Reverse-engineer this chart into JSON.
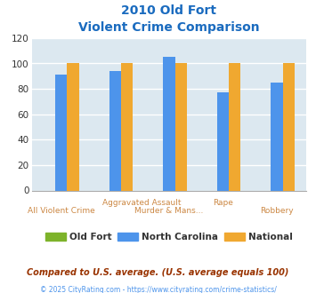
{
  "title_line1": "2010 Old Fort",
  "title_line2": "Violent Crime Comparison",
  "series": {
    "Old Fort": [
      0,
      0,
      0,
      0,
      0
    ],
    "North Carolina": [
      91,
      94,
      105,
      77,
      85
    ],
    "National": [
      100,
      100,
      100,
      100,
      100
    ]
  },
  "series_colors": {
    "Old Fort": "#7db32a",
    "North Carolina": "#4d94eb",
    "National": "#f0a830"
  },
  "ylim": [
    0,
    120
  ],
  "yticks": [
    0,
    20,
    40,
    60,
    80,
    100,
    120
  ],
  "plot_bg_color": "#dce8f0",
  "title_color": "#1a6bbf",
  "axis_label_color": "#cc8844",
  "grid_color": "#ffffff",
  "footnote1": "Compared to U.S. average. (U.S. average equals 100)",
  "footnote2": "© 2025 CityRating.com - https://www.cityrating.com/crime-statistics/",
  "footnote1_color": "#993300",
  "footnote2_color": "#4d94eb",
  "bar_width": 0.22,
  "n_groups": 5,
  "x_top_labels": [
    {
      "text": "Aggravated Assault",
      "x": 1.5
    },
    {
      "text": "Rape",
      "x": 3
    }
  ],
  "x_bottom_labels": [
    {
      "text": "All Violent Crime",
      "x": 0
    },
    {
      "text": "Murder & Mans...",
      "x": 2
    },
    {
      "text": "Robbery",
      "x": 4
    }
  ]
}
